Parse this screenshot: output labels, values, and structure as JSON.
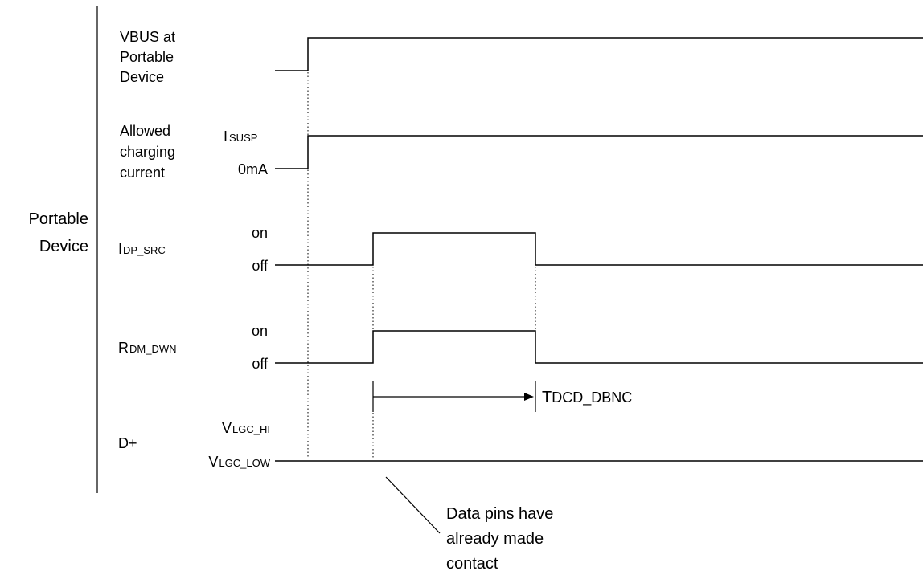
{
  "group_label": {
    "line1": "Portable",
    "line2": "Device"
  },
  "signals": {
    "vbus": {
      "lines": [
        "VBUS at",
        "Portable",
        "Device"
      ]
    },
    "charging": {
      "lines": [
        "Allowed",
        "charging",
        "current"
      ],
      "level_high": {
        "main": "I",
        "sub": "SUSP"
      },
      "level_low": "0mA"
    },
    "idp_src": {
      "name": {
        "main": "I",
        "sub": "DP_SRC"
      },
      "level_on": "on",
      "level_off": "off"
    },
    "rdm_dwn": {
      "name": {
        "main": "R",
        "sub": "DM_DWN"
      },
      "level_on": "on",
      "level_off": "off"
    },
    "dplus": {
      "name": "D+",
      "level_high": {
        "main": "V",
        "sub": "LGC_HI"
      },
      "level_low": {
        "main": "V",
        "sub": "LGC_LOW"
      }
    }
  },
  "timing": {
    "tdcd": {
      "main": "T",
      "sub": "DCD_DBNC"
    }
  },
  "annotation": {
    "lines": [
      "Data pins have",
      "already made",
      "contact"
    ]
  }
}
